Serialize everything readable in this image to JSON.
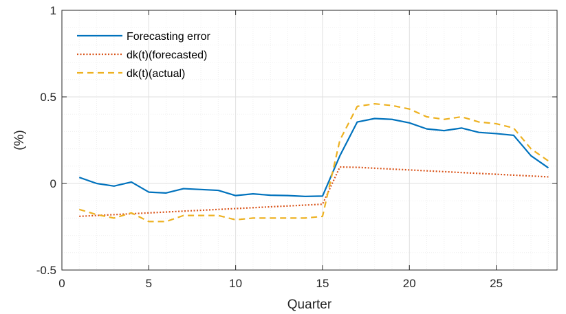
{
  "chart_data": {
    "type": "line",
    "title": "",
    "xlabel": "Quarter",
    "ylabel": "(%)",
    "xlim": [
      0,
      28.5
    ],
    "ylim": [
      -0.5,
      1
    ],
    "xticks": [
      0,
      5,
      10,
      15,
      20,
      25
    ],
    "xtick_labels": [
      "0",
      "5",
      "10",
      "15",
      "20",
      "25"
    ],
    "yticks": [
      -0.5,
      0,
      0.5,
      1
    ],
    "ytick_labels": [
      "-0.5",
      "0",
      "0.5",
      "1"
    ],
    "grid": true,
    "minor_grid": true,
    "legend_position": "top-left",
    "x": [
      1,
      2,
      3,
      4,
      5,
      6,
      7,
      8,
      9,
      10,
      11,
      12,
      13,
      14,
      15,
      16,
      17,
      18,
      19,
      20,
      21,
      22,
      23,
      24,
      25,
      26,
      27,
      28
    ],
    "series": [
      {
        "name": "Forecasting error",
        "color": "#0072BD",
        "style": "solid",
        "values": [
          0.035,
          0.0,
          -0.015,
          0.008,
          -0.05,
          -0.055,
          -0.03,
          -0.035,
          -0.04,
          -0.07,
          -0.06,
          -0.068,
          -0.07,
          -0.075,
          -0.073,
          0.16,
          0.355,
          0.375,
          0.37,
          0.35,
          0.315,
          0.305,
          0.32,
          0.295,
          0.288,
          0.278,
          0.16,
          0.09
        ]
      },
      {
        "name": "dk(t)(forecasted)",
        "color": "#D95319",
        "style": "dotted",
        "values": [
          -0.19,
          -0.185,
          -0.18,
          -0.175,
          -0.17,
          -0.165,
          -0.16,
          -0.155,
          -0.15,
          -0.145,
          -0.14,
          -0.135,
          -0.13,
          -0.125,
          -0.12,
          0.095,
          0.093,
          0.088,
          0.083,
          0.078,
          0.073,
          0.068,
          0.063,
          0.058,
          0.053,
          0.048,
          0.043,
          0.038
        ]
      },
      {
        "name": "dk(t)(actual)",
        "color": "#EDB120",
        "style": "dashed",
        "values": [
          -0.15,
          -0.18,
          -0.2,
          -0.17,
          -0.22,
          -0.22,
          -0.185,
          -0.185,
          -0.185,
          -0.21,
          -0.2,
          -0.2,
          -0.2,
          -0.2,
          -0.19,
          0.25,
          0.445,
          0.46,
          0.45,
          0.43,
          0.385,
          0.37,
          0.385,
          0.355,
          0.345,
          0.32,
          0.2,
          0.13
        ]
      }
    ]
  },
  "colors": {
    "axis": "#262626",
    "grid_major": "#dfdfdf",
    "grid_minor": "#efefef",
    "background": "#ffffff"
  }
}
